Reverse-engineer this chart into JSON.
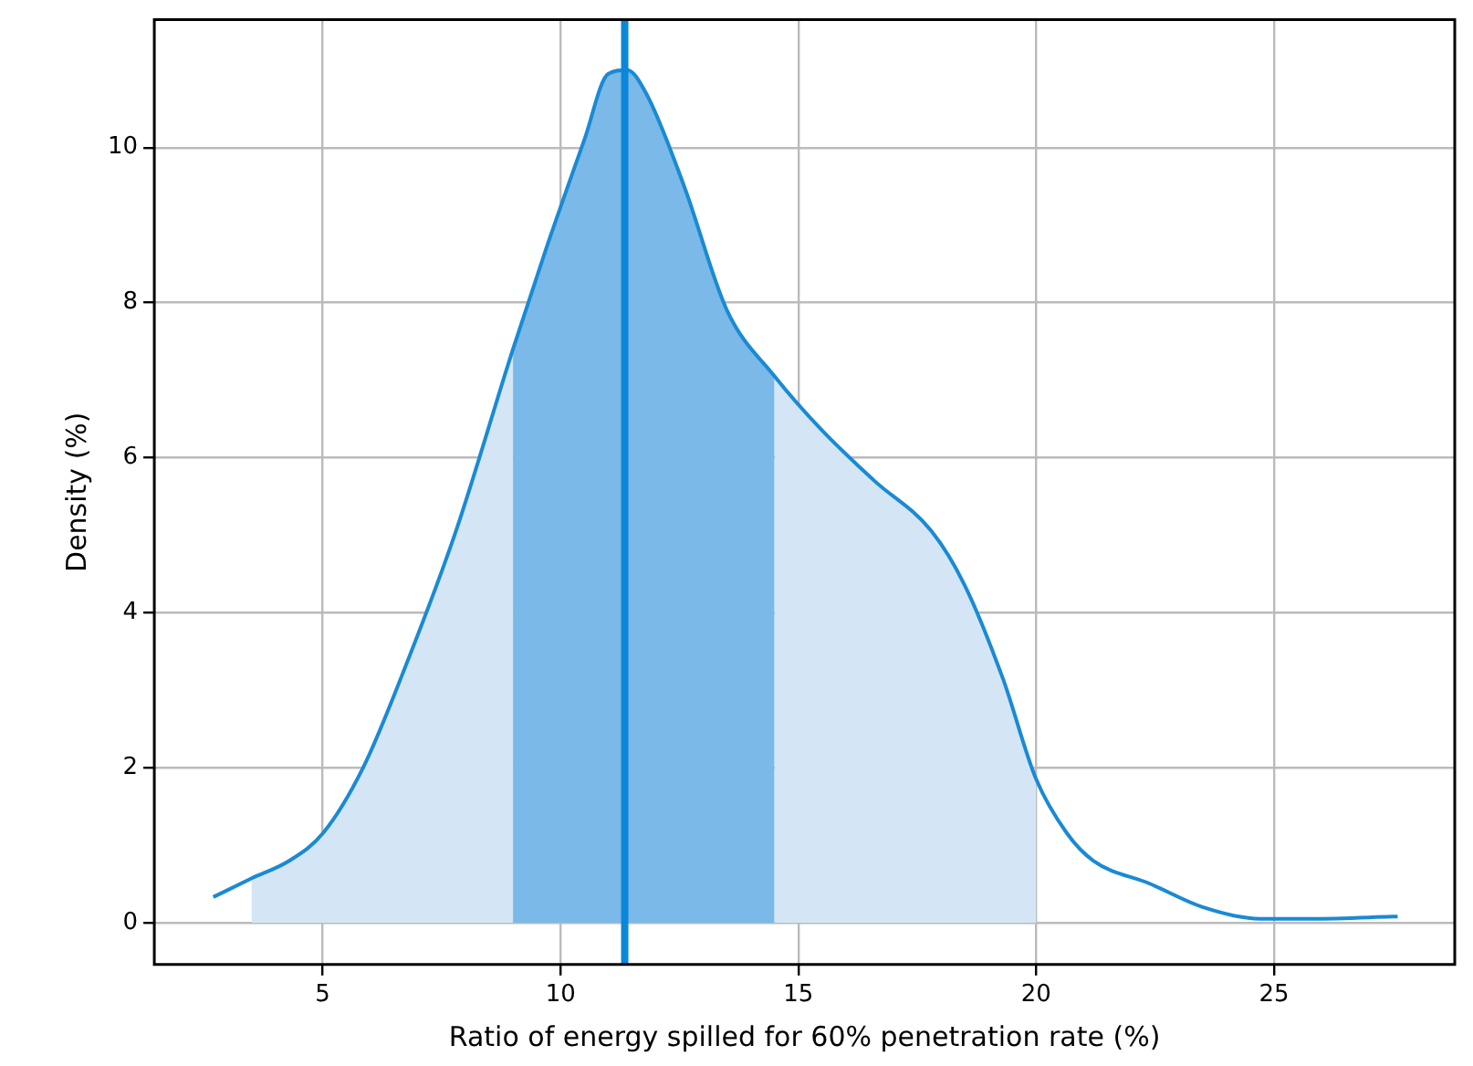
{
  "chart_data": {
    "type": "line",
    "xlabel": "Ratio of energy spilled for 60% penetration rate (%)",
    "ylabel": "Density (%)",
    "x": [
      2.7,
      3.5,
      4.3,
      5,
      5.85,
      6.8,
      7.8,
      9,
      9.7,
      10.5,
      11.0,
      11.4,
      11.8,
      12.6,
      13.5,
      14.5,
      15.5,
      16.6,
      17.8,
      18.5,
      19.3,
      20,
      20.65,
      21.2,
      22.4,
      23.5,
      24.7,
      25.8,
      27.6
    ],
    "series": [
      {
        "color": "#1a8ad4",
        "values": [
          0.33,
          0.57,
          0.8,
          1.15,
          2.0,
          3.4,
          5.05,
          7.4,
          8.7,
          10.1,
          10.95,
          11.0,
          10.7,
          9.5,
          7.9,
          7.05,
          6.35,
          5.7,
          5.05,
          4.35,
          3.15,
          1.85,
          1.15,
          0.8,
          0.5,
          0.2,
          0.05,
          0.05,
          0.08
        ]
      },
      {
        "type": "area",
        "color": "#d4e6f6",
        "x": [
          3.5,
          4.3,
          5,
          5.85,
          6.8,
          7.8,
          9,
          9.7,
          10.5,
          11.0,
          11.4,
          11.8,
          12.6,
          13.5,
          14.5,
          15.5,
          16.6,
          17.8,
          18.5,
          19.3,
          20
        ],
        "values": [
          0.57,
          0.8,
          1.15,
          2.0,
          3.4,
          5.05,
          7.4,
          null,
          null,
          null,
          null,
          null,
          null,
          null,
          7.05,
          6.35,
          5.7,
          5.05,
          4.35,
          3.15,
          1.85
        ]
      },
      {
        "type": "area",
        "color": "#7ab9e8",
        "x": [
          9,
          9.7,
          10.5,
          11.0,
          11.4,
          11.8,
          12.6,
          13.5,
          14.5
        ],
        "values": [
          7.4,
          8.7,
          10.1,
          10.95,
          11.0,
          10.7,
          9.5,
          7.9,
          7.05
        ]
      }
    ],
    "ref_lines": [
      {
        "axis": "x",
        "value": 11.35,
        "color": "#0a87d8"
      }
    ],
    "xlim": [
      1.46,
      28.8
    ],
    "ylim": [
      -0.54,
      11.65
    ],
    "xticks": [
      5,
      10,
      15,
      20,
      25
    ],
    "yticks": [
      0,
      2,
      4,
      6,
      8,
      10
    ],
    "grid": true
  }
}
